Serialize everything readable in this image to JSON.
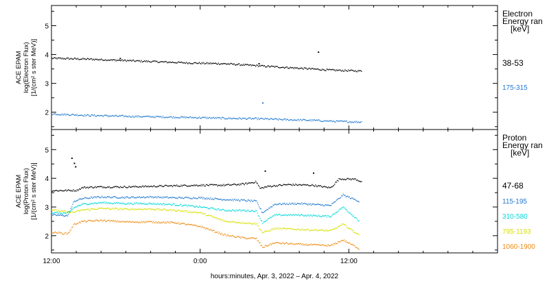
{
  "chart_data": [
    {
      "type": "scatter",
      "panel": "electron",
      "ylabel": [
        "ACE EPAM",
        "log(Electron Flux)",
        "[1/(cm² s ster MeV)]"
      ],
      "ylim": [
        1.4,
        5.7
      ],
      "yticks": [
        "2",
        "3",
        "4",
        "5"
      ],
      "legend_title": [
        "Electron",
        "Energy ran",
        "[keV]"
      ],
      "legend_placement": "right",
      "grid": false,
      "series": [
        {
          "name": "38-53",
          "color": "#000000",
          "points": [
            [
              0,
              3.87
            ],
            [
              3,
              3.84
            ],
            [
              6,
              3.79
            ],
            [
              8.5,
              3.75
            ],
            [
              11,
              3.71
            ],
            [
              14,
              3.68
            ],
            [
              17,
              3.6
            ],
            [
              19,
              3.55
            ],
            [
              21,
              3.5
            ],
            [
              22.5,
              3.46
            ],
            [
              24,
              3.44
            ],
            [
              25,
              3.43
            ]
          ],
          "outliers": [
            [
              5.5,
              3.86
            ],
            [
              16.7,
              3.68
            ],
            [
              21.5,
              4.08
            ]
          ]
        },
        {
          "name": "175-315",
          "color": "#1f78d0",
          "points": [
            [
              0,
              1.94
            ],
            [
              3,
              1.89
            ],
            [
              6,
              1.86
            ],
            [
              8.5,
              1.84
            ],
            [
              11,
              1.82
            ],
            [
              14,
              1.79
            ],
            [
              17,
              1.77
            ],
            [
              19,
              1.74
            ],
            [
              21,
              1.72
            ],
            [
              22.5,
              1.69
            ],
            [
              24,
              1.67
            ],
            [
              25,
              1.66
            ]
          ],
          "outliers": [
            [
              17,
              2.32
            ]
          ]
        }
      ]
    },
    {
      "type": "scatter",
      "panel": "proton",
      "ylabel": [
        "ACE EPAM",
        "log(Proton Flux)",
        "[1/(cm² s ster MeV)]"
      ],
      "ylim": [
        1.4,
        5.7
      ],
      "yticks": [
        "2",
        "3",
        "4",
        "5"
      ],
      "legend_title": [
        "Proton",
        "Energy ran",
        "[keV]"
      ],
      "legend_placement": "right",
      "grid": false,
      "series": [
        {
          "name": "47-68",
          "color": "#000000",
          "points": [
            [
              0,
              3.57
            ],
            [
              2,
              3.58
            ],
            [
              2.5,
              3.68
            ],
            [
              4,
              3.7
            ],
            [
              6,
              3.7
            ],
            [
              8,
              3.72
            ],
            [
              10,
              3.74
            ],
            [
              12,
              3.76
            ],
            [
              14,
              3.76
            ],
            [
              15.5,
              3.8
            ],
            [
              16.5,
              3.88
            ],
            [
              16.8,
              3.65
            ],
            [
              17.5,
              3.72
            ],
            [
              19,
              3.78
            ],
            [
              21,
              3.76
            ],
            [
              22.5,
              3.67
            ],
            [
              23.2,
              3.98
            ],
            [
              24.5,
              3.97
            ],
            [
              25,
              3.88
            ]
          ],
          "outliers": [
            [
              1.6,
              4.7
            ],
            [
              1.8,
              4.52
            ],
            [
              1.9,
              4.4
            ],
            [
              17.2,
              4.25
            ],
            [
              21.1,
              4.18
            ]
          ]
        },
        {
          "name": "115-195",
          "color": "#1f78d0",
          "points": [
            [
              0,
              2.72
            ],
            [
              1.3,
              2.7
            ],
            [
              1.8,
              3.2
            ],
            [
              2.5,
              3.3
            ],
            [
              4,
              3.35
            ],
            [
              6,
              3.33
            ],
            [
              8,
              3.35
            ],
            [
              10,
              3.32
            ],
            [
              12,
              3.32
            ],
            [
              14,
              3.26
            ],
            [
              15.5,
              3.23
            ],
            [
              16.5,
              3.2
            ],
            [
              17,
              2.8
            ],
            [
              18,
              3.1
            ],
            [
              20,
              3.12
            ],
            [
              22.5,
              3.05
            ],
            [
              23.5,
              3.42
            ],
            [
              24.8,
              3.2
            ]
          ]
        },
        {
          "name": "310-580",
          "color": "#00d8d8",
          "points": [
            [
              0,
              2.8
            ],
            [
              1.3,
              2.78
            ],
            [
              1.8,
              2.98
            ],
            [
              2.5,
              3.1
            ],
            [
              4,
              3.15
            ],
            [
              6,
              3.12
            ],
            [
              8,
              3.12
            ],
            [
              10,
              3.08
            ],
            [
              12,
              3.0
            ],
            [
              14,
              2.88
            ],
            [
              15.5,
              2.88
            ],
            [
              16.5,
              2.86
            ],
            [
              17,
              2.45
            ],
            [
              18,
              2.72
            ],
            [
              20,
              2.72
            ],
            [
              22.5,
              2.67
            ],
            [
              23.5,
              3.0
            ],
            [
              24.8,
              2.52
            ]
          ]
        },
        {
          "name": "795-1193",
          "color": "#d8e000",
          "points": [
            [
              0,
              2.9
            ],
            [
              1.3,
              2.82
            ],
            [
              1.8,
              2.82
            ],
            [
              2.5,
              2.9
            ],
            [
              4,
              2.95
            ],
            [
              6,
              2.92
            ],
            [
              8,
              2.93
            ],
            [
              10,
              2.88
            ],
            [
              12,
              2.8
            ],
            [
              14,
              2.5
            ],
            [
              15.5,
              2.45
            ],
            [
              16.5,
              2.42
            ],
            [
              17,
              2.1
            ],
            [
              18,
              2.25
            ],
            [
              20,
              2.22
            ],
            [
              22.5,
              2.17
            ],
            [
              23.5,
              2.4
            ],
            [
              24.8,
              2.02
            ]
          ]
        },
        {
          "name": "1060-1900",
          "color": "#ef8a10",
          "points": [
            [
              0,
              2.12
            ],
            [
              1.3,
              2.07
            ],
            [
              1.8,
              2.4
            ],
            [
              2.5,
              2.5
            ],
            [
              4,
              2.53
            ],
            [
              6,
              2.48
            ],
            [
              8,
              2.48
            ],
            [
              10,
              2.45
            ],
            [
              12,
              2.32
            ],
            [
              14,
              2.02
            ],
            [
              15.5,
              1.92
            ],
            [
              16.5,
              1.9
            ],
            [
              17,
              1.6
            ],
            [
              18,
              1.75
            ],
            [
              20,
              1.7
            ],
            [
              22.5,
              1.65
            ],
            [
              23.5,
              1.85
            ],
            [
              24.8,
              1.55
            ]
          ]
        }
      ]
    }
  ],
  "xaxis": {
    "range_hours": [
      0,
      36
    ],
    "ticks": [
      {
        "h": 0,
        "label": "12:00"
      },
      {
        "h": 12,
        "label": "0:00"
      },
      {
        "h": 24,
        "label": "12:00"
      }
    ],
    "title": "hours:minutes, Apr.  3, 2022 – Apr.  4, 2022"
  }
}
